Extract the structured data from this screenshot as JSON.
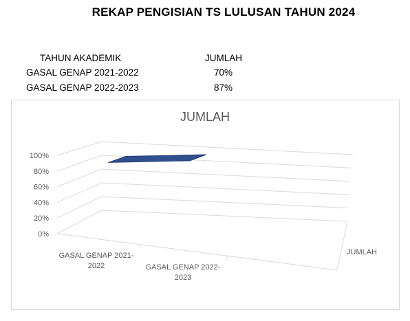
{
  "heading": "REKAP PENGISIAN TS LULUSAN TAHUN 2024",
  "table": {
    "headers": [
      "TAHUN AKADEMIK",
      "JUMLAH"
    ],
    "rows": [
      [
        "GASAL GENAP 2021-2022",
        "70%"
      ],
      [
        "GASAL GENAP 2022-2023",
        "87%"
      ]
    ]
  },
  "chart_data": {
    "type": "area",
    "title": "JUMLAH",
    "categories": [
      "GASAL GENAP 2021-2022",
      "GASAL GENAP 2022-2023"
    ],
    "category_label_lines": [
      [
        "GASAL GENAP 2021-",
        "2022"
      ],
      [
        "GASAL GENAP 2022-",
        "2023"
      ]
    ],
    "series": [
      {
        "name": "JUMLAH",
        "values": [
          70,
          87
        ]
      }
    ],
    "y_ticks": [
      "0%",
      "20%",
      "40%",
      "60%",
      "80%",
      "100%"
    ],
    "ylim": [
      0,
      100
    ],
    "grid": true,
    "legend": "right",
    "series_color": "#2f4f8f",
    "three_d": true
  }
}
